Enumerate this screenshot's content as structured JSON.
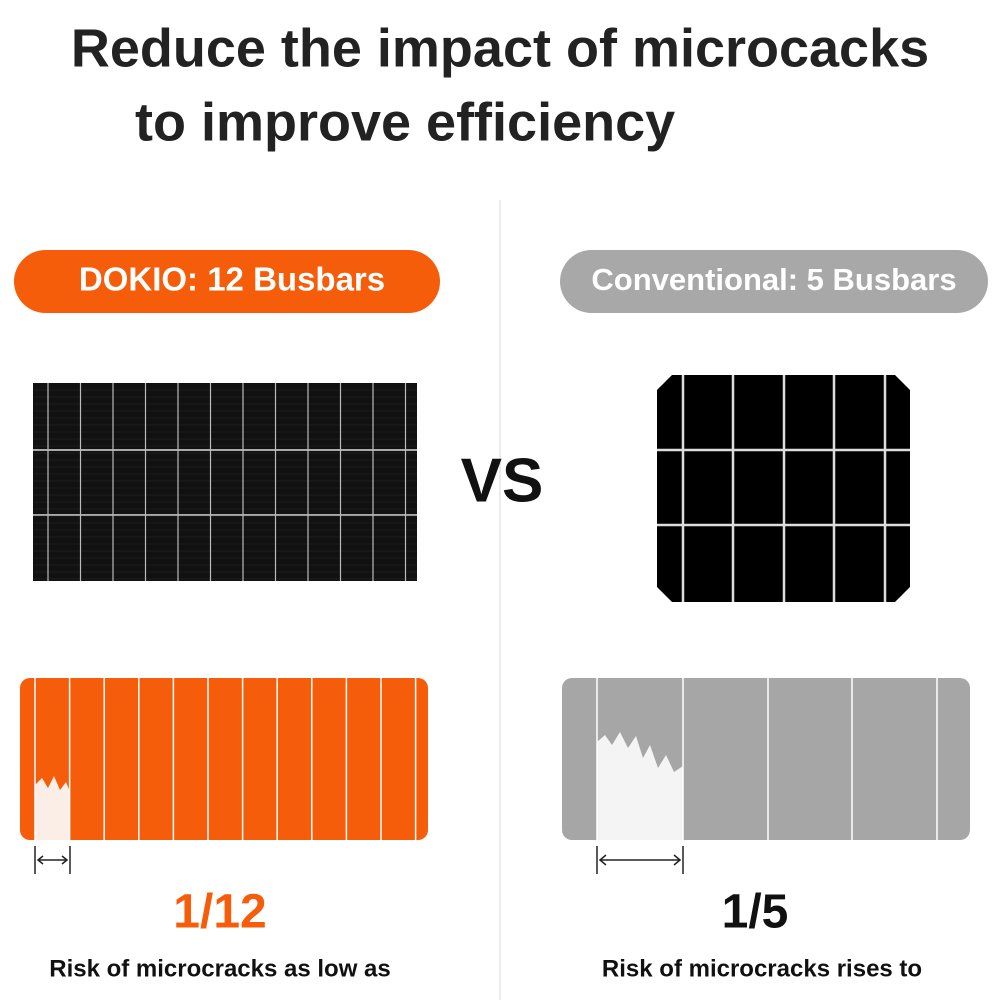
{
  "header": {
    "title_lines": [
      "Reduce the impact of microcacks",
      "to improve efficiency"
    ]
  },
  "comparison": {
    "separator": "VS",
    "left": {
      "label": "DOKIO: 12 Busbars",
      "ratio": "1/12",
      "caption": "Risk of microcracks as low as"
    },
    "right": {
      "label": "Conventional: 5 Busbars",
      "ratio": "1/5",
      "caption": "Risk of microcracks rises to"
    }
  }
}
